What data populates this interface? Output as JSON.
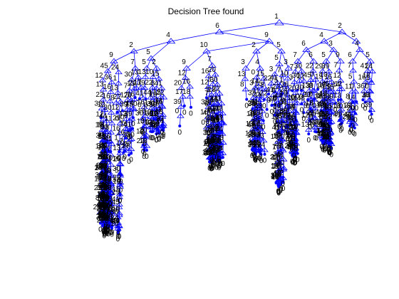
{
  "figure": {
    "title": "Decision Tree found"
  },
  "style": {
    "tree_color": "#0000ff",
    "label_color": "#000000",
    "background": "#ffffff"
  },
  "tree": {
    "root_label": "1",
    "level1_labels": [
      "6",
      "2"
    ],
    "level2_labels": [
      "4",
      "9",
      "4",
      "5"
    ],
    "level3_labels": [
      "2",
      "5",
      "10",
      "2",
      "5",
      "6",
      "3",
      "4"
    ],
    "level4_labels": [
      "9",
      "7",
      "5",
      "2",
      "9",
      "7",
      "3",
      "4",
      "5",
      "3",
      "7",
      "6",
      "5",
      "9",
      "6",
      "5"
    ],
    "leaf_label": "0",
    "dense_labels": [
      "12",
      "13",
      "17",
      "14",
      "10",
      "16",
      "11",
      "15",
      "18",
      "20",
      "22",
      "24",
      "29",
      "30",
      "33",
      "36",
      "39",
      "41",
      "44",
      "45",
      "8",
      "1",
      "0",
      "3",
      "7",
      "5"
    ]
  }
}
